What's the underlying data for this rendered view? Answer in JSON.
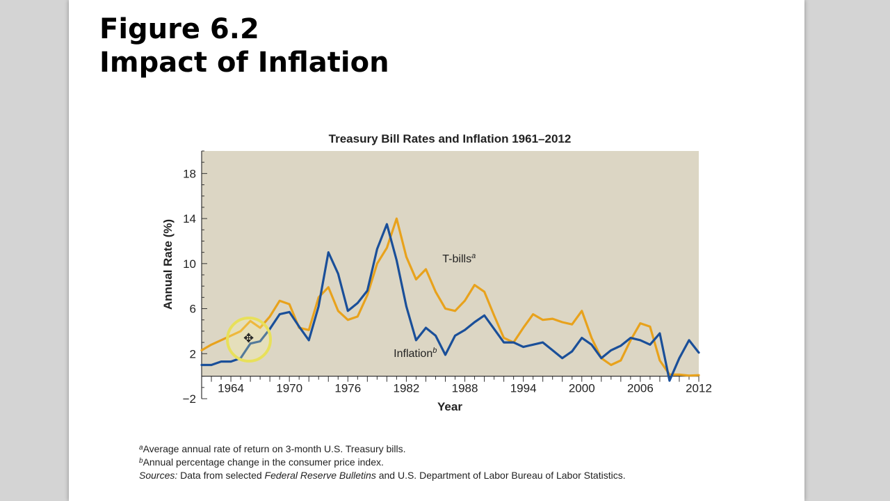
{
  "slide": {
    "title_line1": "Figure 6.2",
    "title_line2": "Impact of Inflation"
  },
  "chart_data": {
    "type": "line",
    "title": "Treasury Bill Rates and Inflation 1961–2012",
    "xlabel": "Year",
    "ylabel": "Annual Rate (%)",
    "xlim": [
      1961,
      2012
    ],
    "ylim": [
      -2,
      20
    ],
    "x_ticks": [
      1964,
      1970,
      1976,
      1982,
      1988,
      1994,
      2000,
      2006,
      2012
    ],
    "y_ticks": [
      -2,
      2,
      6,
      10,
      14,
      18
    ],
    "grid": false,
    "plot_background": "#dcd6c4",
    "series": [
      {
        "name": "T-bills",
        "label_sup": "a",
        "color": "#e8a21c",
        "x": [
          1961,
          1962,
          1963,
          1964,
          1965,
          1966,
          1967,
          1968,
          1969,
          1970,
          1971,
          1972,
          1973,
          1974,
          1975,
          1976,
          1977,
          1978,
          1979,
          1980,
          1981,
          1982,
          1983,
          1984,
          1985,
          1986,
          1987,
          1988,
          1989,
          1990,
          1991,
          1992,
          1993,
          1994,
          1995,
          1996,
          1997,
          1998,
          1999,
          2000,
          2001,
          2002,
          2003,
          2004,
          2005,
          2006,
          2007,
          2008,
          2009,
          2010,
          2011,
          2012
        ],
        "values": [
          2.3,
          2.8,
          3.2,
          3.6,
          4.0,
          4.9,
          4.3,
          5.3,
          6.7,
          6.4,
          4.3,
          4.1,
          7.0,
          7.9,
          5.8,
          5.0,
          5.3,
          7.2,
          10.0,
          11.4,
          14.0,
          10.6,
          8.6,
          9.5,
          7.5,
          6.0,
          5.8,
          6.7,
          8.1,
          7.5,
          5.4,
          3.4,
          3.0,
          4.3,
          5.5,
          5.0,
          5.1,
          4.8,
          4.6,
          5.8,
          3.4,
          1.6,
          1.0,
          1.4,
          3.2,
          4.7,
          4.4,
          1.4,
          0.15,
          0.14,
          0.05,
          0.09
        ]
      },
      {
        "name": "Inflation",
        "label_sup": "b",
        "color": "#1a4f99",
        "x": [
          1961,
          1962,
          1963,
          1964,
          1965,
          1966,
          1967,
          1968,
          1969,
          1970,
          1971,
          1972,
          1973,
          1974,
          1975,
          1976,
          1977,
          1978,
          1979,
          1980,
          1981,
          1982,
          1983,
          1984,
          1985,
          1986,
          1987,
          1988,
          1989,
          1990,
          1991,
          1992,
          1993,
          1994,
          1995,
          1996,
          1997,
          1998,
          1999,
          2000,
          2001,
          2002,
          2003,
          2004,
          2005,
          2006,
          2007,
          2008,
          2009,
          2010,
          2011,
          2012
        ],
        "values": [
          1.0,
          1.0,
          1.3,
          1.3,
          1.6,
          2.9,
          3.1,
          4.2,
          5.5,
          5.7,
          4.4,
          3.2,
          6.2,
          11.0,
          9.1,
          5.8,
          6.5,
          7.6,
          11.3,
          13.5,
          10.3,
          6.2,
          3.2,
          4.3,
          3.6,
          1.9,
          3.6,
          4.1,
          4.8,
          5.4,
          4.2,
          3.0,
          3.0,
          2.6,
          2.8,
          3.0,
          2.3,
          1.6,
          2.2,
          3.4,
          2.8,
          1.6,
          2.3,
          2.7,
          3.4,
          3.2,
          2.8,
          3.8,
          -0.4,
          1.6,
          3.2,
          2.1
        ]
      }
    ],
    "annotations": [
      {
        "text": "T-bills",
        "sup": "a",
        "x": 1985.7,
        "y": 10.1
      },
      {
        "text": "Inflation",
        "sup": "b",
        "x": 1980.7,
        "y": 1.7
      }
    ]
  },
  "footnotes": {
    "a_sup": "a",
    "a_text": "Average annual rate of return on 3-month U.S. Treasury bills.",
    "b_sup": "b",
    "b_text": "Annual percentage change in the consumer price index.",
    "sources_label": "Sources:",
    "sources_part1": " Data from selected ",
    "sources_italic1": "Federal Reserve Bulletins",
    "sources_part2": " and U.S. Department of Labor Bureau of Labor Statistics."
  }
}
